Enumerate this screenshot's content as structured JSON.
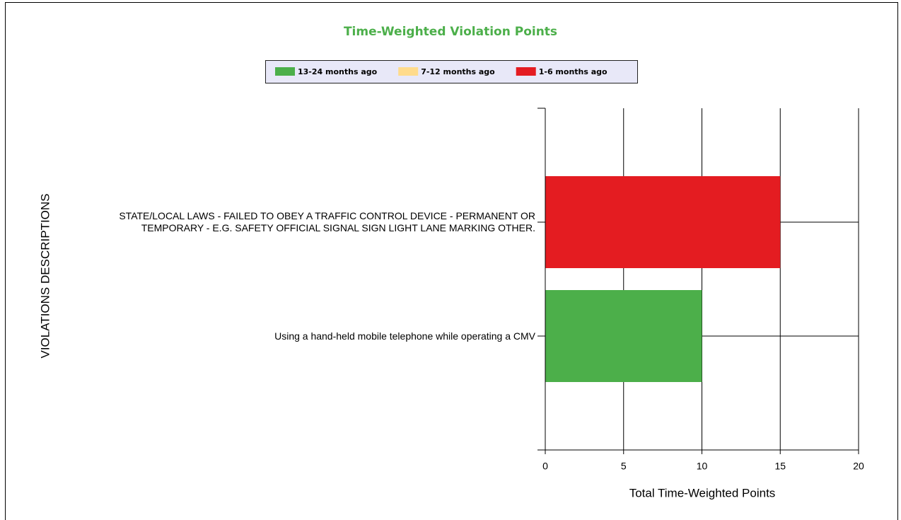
{
  "chart_data": {
    "type": "stacked_barh",
    "title": "Time-Weighted Violation Points",
    "xlabel": "Total Time-Weighted Points",
    "ylabel": "VIOLATIONS DESCRIPTIONS",
    "categories": [
      "STATE/LOCAL LAWS - FAILED TO OBEY A TRAFFIC CONTROL DEVICE - PERMANENT OR TEMPORARY - E.G. SAFETY OFFICIAL SIGNAL SIGN LIGHT LANE MARKING OTHER.",
      "Using a hand-held mobile telephone while operating a CMV"
    ],
    "series": [
      {
        "name": "13-24 months ago",
        "color": "#4caf4a",
        "values": [
          0,
          10
        ]
      },
      {
        "name": "7-12 months ago",
        "color": "#ffdb8c",
        "values": [
          0,
          0
        ]
      },
      {
        "name": "1-6 months ago",
        "color": "#e41c21",
        "values": [
          15,
          0
        ]
      }
    ],
    "xlim": [
      0,
      20
    ],
    "xticks": [
      0,
      5,
      10,
      15,
      20
    ],
    "grid": true
  }
}
